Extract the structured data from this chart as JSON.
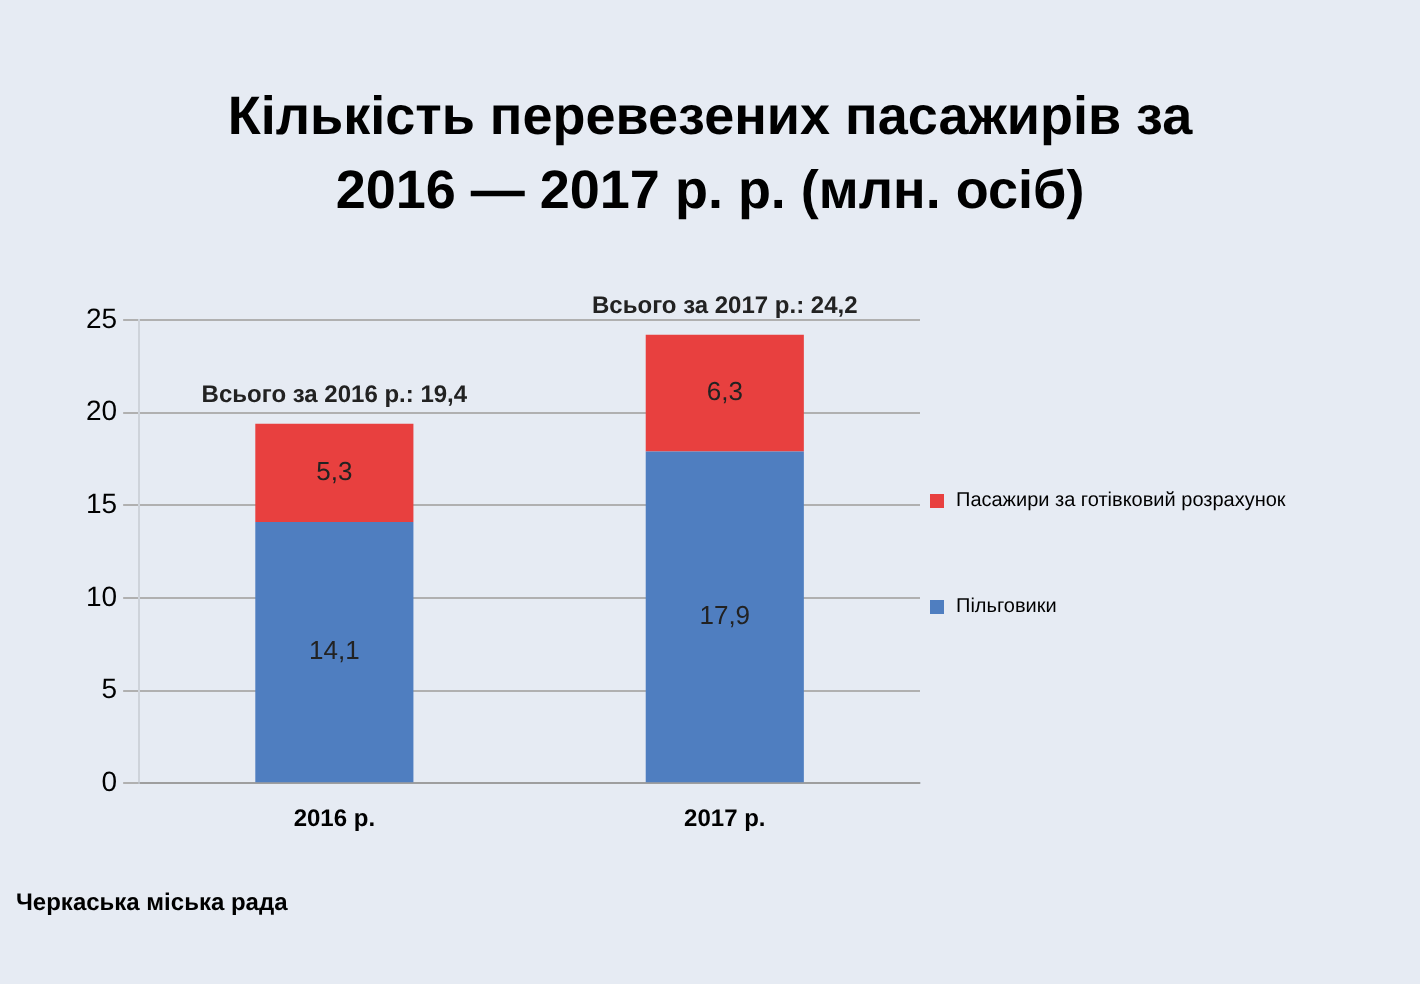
{
  "chart_data": {
    "type": "bar",
    "title": "Кількість перевезених пасажирів за 2016 — 2017 р. р. (млн. осіб)",
    "categories": [
      "2016 р.",
      "2017 р."
    ],
    "series": [
      {
        "name": "Пільговики",
        "color": "#4f7ec0",
        "values": [
          14.1,
          17.9
        ],
        "value_labels": [
          "14,1",
          "17,9"
        ]
      },
      {
        "name": "Пасажири за готівковий розрахунок",
        "color": "#e8403f",
        "values": [
          5.3,
          6.3
        ],
        "value_labels": [
          "5,3",
          "6,3"
        ]
      }
    ],
    "stacked": true,
    "ylim": [
      0,
      25
    ],
    "yticks": [
      0,
      5,
      10,
      15,
      20,
      25
    ],
    "grid": "y",
    "legend": "right",
    "totals": [
      "Всього за 2016 р.: 19,4",
      "Всього за 2017 р.: 24,2"
    ],
    "annotations": [
      "Черкаська міська рада"
    ]
  }
}
